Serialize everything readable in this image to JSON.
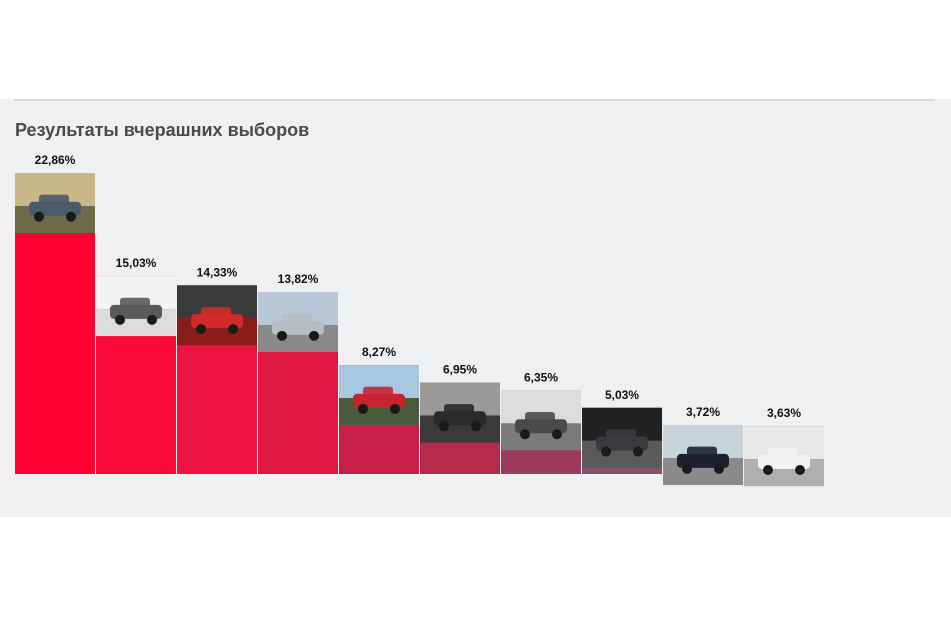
{
  "page": {
    "title": "Результаты вчерашних выборов"
  },
  "chart_data": {
    "type": "bar",
    "title": "Результаты вчерашних выборов",
    "values": [
      22.86,
      15.03,
      14.33,
      13.82,
      8.27,
      6.95,
      6.35,
      5.03,
      3.72,
      3.63
    ],
    "value_labels": [
      "22,86%",
      "15,03%",
      "14,33%",
      "13,82%",
      "8,27%",
      "6,95%",
      "6,35%",
      "5,03%",
      "3,72%",
      "3,63%"
    ],
    "colors": [
      "#ff0031",
      "#f9083a",
      "#ef1341",
      "#e0173f",
      "#c71f45",
      "#b52a4a",
      "#9e3a5d",
      "#865168",
      "#705b7a",
      "#5e6484"
    ],
    "thumbnails": [
      {
        "name": "wagon-autumn-road-photo",
        "sky": "#c9b98a",
        "ground": "#6e6a4a",
        "car": "#4a5a6a"
      },
      {
        "name": "grey-coupe-side-photo",
        "sky": "#f4f4f4",
        "ground": "#dcdcdc",
        "car": "#5a5a5c"
      },
      {
        "name": "red-interior-photo",
        "sky": "#3a3a3a",
        "ground": "#8a1c1c",
        "car": "#d22a2a"
      },
      {
        "name": "silver-sedan-front-photo",
        "sky": "#b8c8d8",
        "ground": "#8a8a8a",
        "car": "#b9bcc0"
      },
      {
        "name": "red-hatchback-forest-photo",
        "sky": "#a7c6e0",
        "ground": "#4a5a3a",
        "car": "#c8242f"
      },
      {
        "name": "bw-person-on-car-photo",
        "sky": "#9a9a9a",
        "ground": "#3a3a3a",
        "car": "#2a2a2a"
      },
      {
        "name": "bw-sedan-photo",
        "sky": "#dcdcdc",
        "ground": "#7a7a7a",
        "car": "#4a4a4a"
      },
      {
        "name": "dark-car-garage-photo",
        "sky": "#222222",
        "ground": "#5a5a5a",
        "car": "#3a3a40"
      },
      {
        "name": "dark-sedan-parking-photo",
        "sky": "#c8d4dc",
        "ground": "#8a8a8a",
        "car": "#1e2230"
      },
      {
        "name": "white-hatchback-stripes-photo",
        "sky": "#e8e8e8",
        "ground": "#b0b0b0",
        "car": "#f2f2f2"
      }
    ]
  }
}
